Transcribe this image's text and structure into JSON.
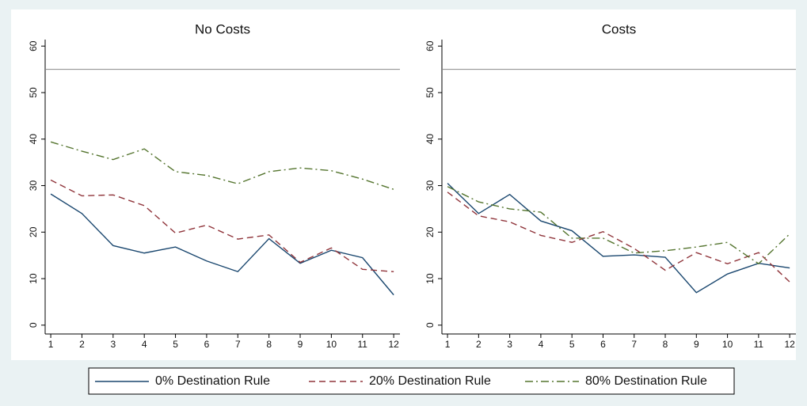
{
  "chart_data": [
    {
      "type": "line",
      "title": "No Costs",
      "x": [
        1,
        2,
        3,
        4,
        5,
        6,
        7,
        8,
        9,
        10,
        11,
        12
      ],
      "xlim": [
        0.82,
        12.2
      ],
      "xticks": [
        1,
        2,
        3,
        4,
        5,
        6,
        7,
        8,
        9,
        10,
        11,
        12
      ],
      "ylim": [
        -1.9,
        61.4
      ],
      "yticks": [
        0,
        10,
        20,
        30,
        40,
        50,
        60
      ],
      "hline": 55,
      "legend": "bottom",
      "series": [
        {
          "name": "0% Destination Rule",
          "color": "#1a476f",
          "dash": "solid",
          "values": [
            28.2,
            24,
            17.1,
            15.5,
            16.8,
            13.8,
            11.5,
            18.6,
            13.3,
            16.1,
            14.5,
            6.5
          ]
        },
        {
          "name": "20% Destination Rule",
          "color": "#90353b",
          "dash": "dashed",
          "values": [
            31.2,
            27.8,
            28,
            25.7,
            19.8,
            21.5,
            18.5,
            19.4,
            13.5,
            16.6,
            12,
            11.5
          ]
        },
        {
          "name": "80% Destination Rule",
          "color": "#55752f",
          "dash": "dashdot",
          "values": [
            39.4,
            37.4,
            35.6,
            37.9,
            33,
            32.2,
            30.4,
            33,
            33.8,
            33.2,
            31.4,
            29.2
          ]
        }
      ]
    },
    {
      "type": "line",
      "title": "Costs",
      "x": [
        1,
        2,
        3,
        4,
        5,
        6,
        7,
        8,
        9,
        10,
        11,
        12
      ],
      "xlim": [
        0.82,
        12.2
      ],
      "xticks": [
        1,
        2,
        3,
        4,
        5,
        6,
        7,
        8,
        9,
        10,
        11,
        12
      ],
      "ylim": [
        -1.9,
        61.4
      ],
      "yticks": [
        0,
        10,
        20,
        30,
        40,
        50,
        60
      ],
      "hline": 55,
      "series": [
        {
          "color": "#1a476f",
          "dash": "solid",
          "values": [
            30.5,
            24,
            28.1,
            22.4,
            20.3,
            14.8,
            15.1,
            14.6,
            7,
            11,
            13.3,
            12.3
          ]
        },
        {
          "color": "#90353b",
          "dash": "dashed",
          "values": [
            28.6,
            23.5,
            22.2,
            19.3,
            17.8,
            20.1,
            16.5,
            11.8,
            15.6,
            13.2,
            15.6,
            9.3
          ]
        },
        {
          "color": "#55752f",
          "dash": "dashdot",
          "values": [
            29.8,
            26.5,
            25,
            24.3,
            18.7,
            18.7,
            15.5,
            16,
            16.8,
            17.8,
            13.2,
            19.6
          ]
        }
      ]
    }
  ]
}
